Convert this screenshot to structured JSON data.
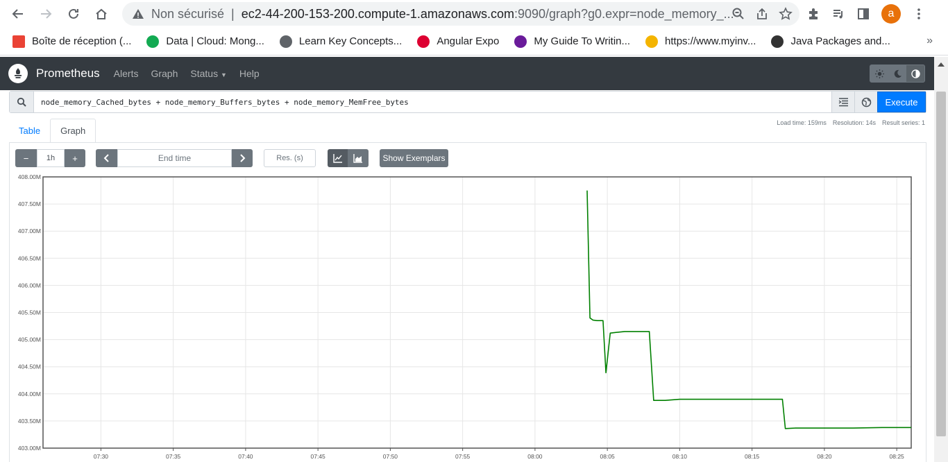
{
  "browser": {
    "insecure_label": "Non sécurisé",
    "url_host": "ec2-44-200-153-200.compute-1.amazonaws.com",
    "url_path": ":9090/graph?g0.expr=node_memory_...",
    "avatar_letter": "a",
    "bookmarks": [
      {
        "label": "Boîte de réception (...",
        "icon": "gmail-icon",
        "color": "#ea4335"
      },
      {
        "label": "Data | Cloud: Mong...",
        "icon": "mongodb-icon",
        "color": "#13aa52"
      },
      {
        "label": "Learn Key Concepts...",
        "icon": "cisco-icon",
        "color": "#5f6368"
      },
      {
        "label": "Angular Expo",
        "icon": "angular-icon",
        "color": "#dd0031"
      },
      {
        "label": "My Guide To Writin...",
        "icon": "guide-icon",
        "color": "#6a1b9a"
      },
      {
        "label": "https://www.myinv...",
        "icon": "myinvestor-icon",
        "color": "#f4b400"
      },
      {
        "label": "Java Packages and...",
        "icon": "java-icon",
        "color": "#333333"
      }
    ],
    "bookmarks_more": "»"
  },
  "navbar": {
    "brand": "Prometheus",
    "links": [
      "Alerts",
      "Graph",
      "Status",
      "Help"
    ]
  },
  "query": {
    "expression": "node_memory_Cached_bytes + node_memory_Buffers_bytes + node_memory_MemFree_bytes",
    "execute_label": "Execute"
  },
  "tabs": {
    "table": "Table",
    "graph": "Graph",
    "active": "Graph"
  },
  "stats": {
    "load_time": "Load time: 159ms",
    "resolution": "Resolution: 14s",
    "result_series": "Result series: 1"
  },
  "controls": {
    "minus": "−",
    "range": "1h",
    "plus": "+",
    "end_time_placeholder": "End time",
    "res_placeholder": "Res. (s)",
    "exemplars_label": "Show Exemplars"
  },
  "colors": {
    "accent": "#007bff",
    "navbar_bg": "#343a40",
    "series": "#008000"
  },
  "chart_data": {
    "type": "line",
    "y_ticks": [
      "408.00M",
      "407.50M",
      "407.00M",
      "406.50M",
      "406.00M",
      "405.50M",
      "405.00M",
      "404.50M",
      "404.00M",
      "403.50M",
      "403.00M"
    ],
    "ylim": [
      403.0,
      408.0
    ],
    "y_unit": "M",
    "x_ticks": [
      "07:30",
      "07:35",
      "07:40",
      "07:45",
      "07:50",
      "07:55",
      "08:00",
      "08:05",
      "08:10",
      "08:15",
      "08:20",
      "08:25"
    ],
    "x_tick_minutes": [
      450,
      455,
      460,
      465,
      470,
      475,
      480,
      485,
      490,
      495,
      500,
      505
    ],
    "xlim_minutes": [
      446.0,
      506.0
    ],
    "grid": true,
    "series": [
      {
        "color": "#008000",
        "x_minutes": [
          483.6,
          483.8,
          484.0,
          484.3,
          484.7,
          484.9,
          485.2,
          485.5,
          486.2,
          487.0,
          487.9,
          488.2,
          489.0,
          490.0,
          492.0,
          494.0,
          496.0,
          497.1,
          497.3,
          498.0,
          500.0,
          502.0,
          504.0,
          506.0
        ],
        "y": [
          407.75,
          405.4,
          405.36,
          405.35,
          405.35,
          404.39,
          405.12,
          405.13,
          405.15,
          405.15,
          405.15,
          403.88,
          403.88,
          403.9,
          403.9,
          403.9,
          403.9,
          403.9,
          403.36,
          403.37,
          403.37,
          403.37,
          403.38,
          403.38
        ]
      }
    ]
  }
}
